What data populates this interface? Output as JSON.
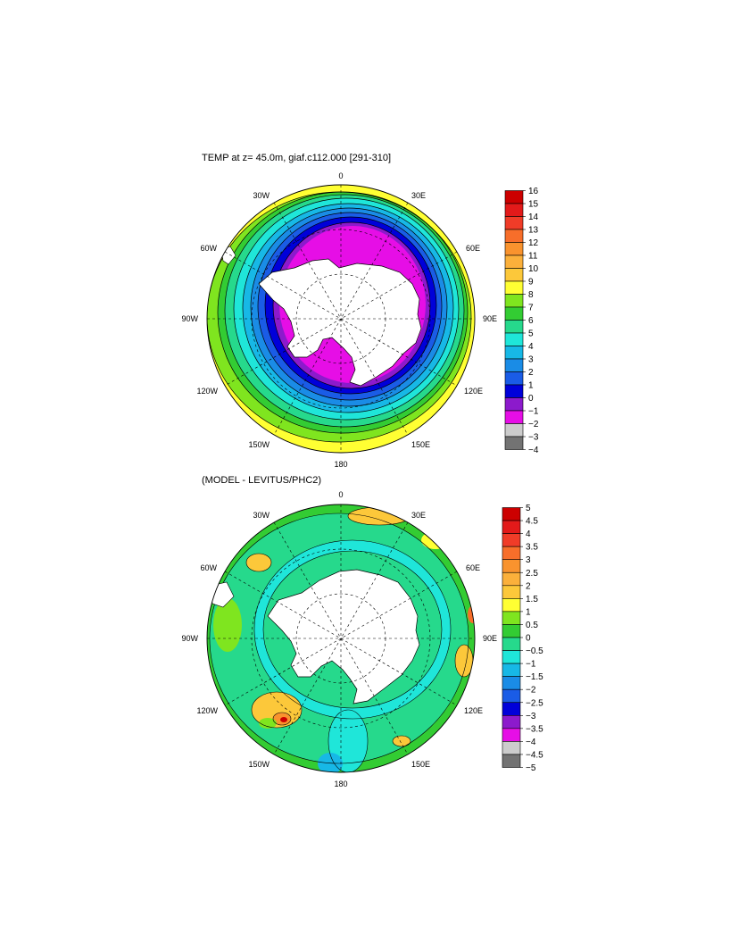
{
  "panels": [
    {
      "title": "TEMP at z=  45.0m, giaf.c112.000 [291-310]",
      "lon_labels": {
        "n": "0",
        "nne": "30E",
        "ene": "60E",
        "e": "90E",
        "ese": "120E",
        "sse": "150E",
        "s": "180",
        "ssw": "150W",
        "wsw": "120W",
        "w": "90W",
        "wnw": "60W",
        "nnw": "30W"
      },
      "colorbar": {
        "labels": [
          "16",
          "15",
          "14",
          "13",
          "12",
          "11",
          "10",
          "9",
          "8",
          "7",
          "6",
          "5",
          "4",
          "3",
          "2",
          "1",
          "0",
          "−1",
          "−2",
          "−3",
          "−4"
        ],
        "colors": [
          "#cc0000",
          "#e31a1a",
          "#f03c28",
          "#f76e2a",
          "#f9932e",
          "#fbb03b",
          "#fcc83a",
          "#ffff33",
          "#7fe51f",
          "#33cc33",
          "#26d98c",
          "#1fe6d9",
          "#17b8e6",
          "#1a8ce6",
          "#1a5ce6",
          "#0000d9",
          "#8c1acc",
          "#e60ee6",
          "#cccccc",
          "#737373"
        ]
      }
    },
    {
      "title": "(MODEL - LEVITUS/PHC2)",
      "lon_labels": {
        "n": "0",
        "nne": "30E",
        "ene": "60E",
        "e": "90E",
        "ese": "120E",
        "sse": "150E",
        "s": "180",
        "ssw": "150W",
        "wsw": "120W",
        "w": "90W",
        "wnw": "60W",
        "nnw": "30W"
      },
      "colorbar": {
        "labels": [
          "5",
          "4.5",
          "4",
          "3.5",
          "3",
          "2.5",
          "2",
          "1.5",
          "1",
          "0.5",
          "0",
          "−0.5",
          "−1",
          "−1.5",
          "−2",
          "−2.5",
          "−3",
          "−3.5",
          "−4",
          "−4.5",
          "−5"
        ],
        "colors": [
          "#cc0000",
          "#e31a1a",
          "#f03c28",
          "#f76e2a",
          "#f9932e",
          "#fbb03b",
          "#fcc83a",
          "#ffff33",
          "#7fe51f",
          "#33cc33",
          "#26d98c",
          "#1fe6d9",
          "#17b8e6",
          "#1a8ce6",
          "#1a5ce6",
          "#0000d9",
          "#8c1acc",
          "#e60ee6",
          "#cccccc",
          "#737373"
        ]
      }
    }
  ]
}
